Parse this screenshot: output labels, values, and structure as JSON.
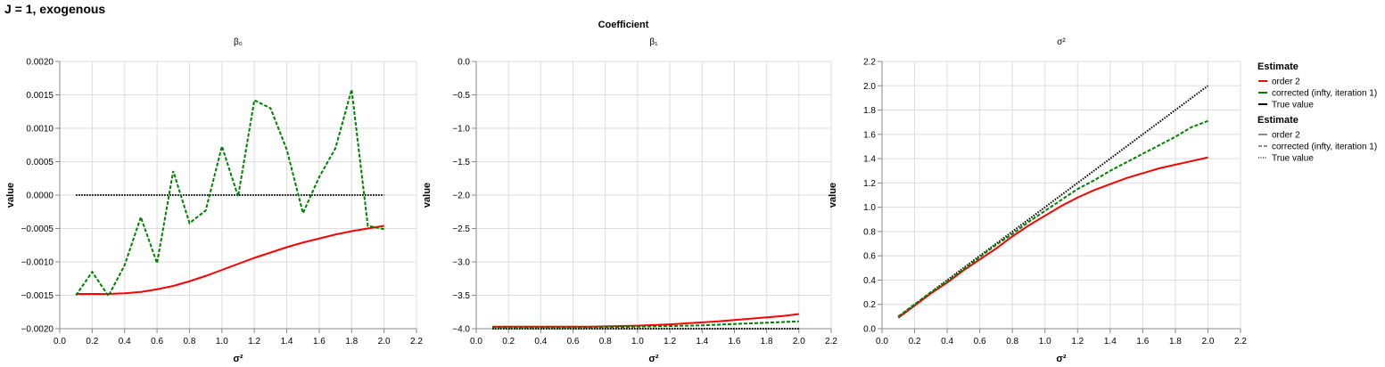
{
  "figure": {
    "title": "J = 1, exogenous",
    "column_title": "Coefficient"
  },
  "legend": {
    "color_title": "Estimate",
    "dash_title": "Estimate",
    "entries": [
      {
        "label": "order 2",
        "color": "#ff0000"
      },
      {
        "label": "corrected (infty, iteration 1)",
        "color": "#008000"
      },
      {
        "label": "True value",
        "color": "#000000"
      }
    ],
    "dash_entries": [
      {
        "label": "order 2",
        "dash": "solid"
      },
      {
        "label": "corrected (infty, iteration 1)",
        "dash": "dashed"
      },
      {
        "label": "True value",
        "dash": "dotted"
      }
    ]
  },
  "chart_data": [
    {
      "type": "line",
      "title": "β₀",
      "xlabel": "σ²",
      "ylabel": "value",
      "xlim": [
        0.0,
        2.2
      ],
      "ylim": [
        -0.002,
        0.002
      ],
      "xticks": [
        "0.0",
        "0.2",
        "0.4",
        "0.6",
        "0.8",
        "1.0",
        "1.2",
        "1.4",
        "1.6",
        "1.8",
        "2.0",
        "2.2"
      ],
      "yticks": [
        "−0.0020",
        "−0.0015",
        "−0.0010",
        "−0.0005",
        "0.0000",
        "0.0005",
        "0.0010",
        "0.0015",
        "0.0020"
      ],
      "x": [
        0.1,
        0.2,
        0.3,
        0.4,
        0.5,
        0.6,
        0.7,
        0.8,
        0.9,
        1.0,
        1.1,
        1.2,
        1.3,
        1.4,
        1.5,
        1.6,
        1.7,
        1.8,
        1.9,
        2.0
      ],
      "series": [
        {
          "name": "order 2",
          "values": [
            -0.00148,
            -0.00148,
            -0.00148,
            -0.00147,
            -0.00145,
            -0.00141,
            -0.00136,
            -0.00129,
            -0.00121,
            -0.00112,
            -0.00103,
            -0.00094,
            -0.00086,
            -0.00078,
            -0.00071,
            -0.00065,
            -0.00059,
            -0.00054,
            -0.0005,
            -0.00046
          ]
        },
        {
          "name": "corrected (infty, iteration 1)",
          "values": [
            -0.0015,
            -0.00115,
            -0.00151,
            -0.00105,
            -0.00033,
            -0.00102,
            0.00036,
            -0.00042,
            -0.00023,
            0.00073,
            -2e-05,
            0.00142,
            0.0013,
            0.00068,
            -0.00027,
            0.00027,
            0.0007,
            0.00158,
            -0.00046,
            -0.00051
          ]
        },
        {
          "name": "True value",
          "values": [
            0,
            0,
            0,
            0,
            0,
            0,
            0,
            0,
            0,
            0,
            0,
            0,
            0,
            0,
            0,
            0,
            0,
            0,
            0,
            0
          ]
        }
      ]
    },
    {
      "type": "line",
      "title": "β₁",
      "xlabel": "σ²",
      "ylabel": "value",
      "xlim": [
        0.0,
        2.2
      ],
      "ylim": [
        -4.0,
        0.0
      ],
      "xticks": [
        "0.0",
        "0.2",
        "0.4",
        "0.6",
        "0.8",
        "1.0",
        "1.2",
        "1.4",
        "1.6",
        "1.8",
        "2.0",
        "2.2"
      ],
      "yticks": [
        "−4.0",
        "−3.5",
        "−3.0",
        "−2.5",
        "−2.0",
        "−1.5",
        "−1.0",
        "−0.5",
        "0.0"
      ],
      "x": [
        0.1,
        0.2,
        0.3,
        0.4,
        0.5,
        0.6,
        0.7,
        0.8,
        0.9,
        1.0,
        1.1,
        1.2,
        1.3,
        1.4,
        1.5,
        1.6,
        1.7,
        1.8,
        1.9,
        2.0
      ],
      "series": [
        {
          "name": "order 2",
          "values": [
            -3.97,
            -3.97,
            -3.97,
            -3.97,
            -3.97,
            -3.97,
            -3.97,
            -3.965,
            -3.96,
            -3.955,
            -3.945,
            -3.935,
            -3.92,
            -3.905,
            -3.89,
            -3.87,
            -3.85,
            -3.83,
            -3.81,
            -3.78
          ]
        },
        {
          "name": "corrected (infty, iteration 1)",
          "values": [
            -3.98,
            -3.98,
            -3.98,
            -3.98,
            -3.98,
            -3.98,
            -3.98,
            -3.975,
            -3.975,
            -3.97,
            -3.965,
            -3.96,
            -3.955,
            -3.95,
            -3.94,
            -3.93,
            -3.92,
            -3.91,
            -3.9,
            -3.89
          ]
        },
        {
          "name": "True value",
          "values": [
            -4,
            -4,
            -4,
            -4,
            -4,
            -4,
            -4,
            -4,
            -4,
            -4,
            -4,
            -4,
            -4,
            -4,
            -4,
            -4,
            -4,
            -4,
            -4,
            -4
          ]
        }
      ]
    },
    {
      "type": "line",
      "title": "σ²",
      "xlabel": "σ²",
      "ylabel": "value",
      "xlim": [
        0.0,
        2.2
      ],
      "ylim": [
        0.0,
        2.2
      ],
      "xticks": [
        "0.0",
        "0.2",
        "0.4",
        "0.6",
        "0.8",
        "1.0",
        "1.2",
        "1.4",
        "1.6",
        "1.8",
        "2.0",
        "2.2"
      ],
      "yticks": [
        "0.0",
        "0.2",
        "0.4",
        "0.6",
        "0.8",
        "1.0",
        "1.2",
        "1.4",
        "1.6",
        "1.8",
        "2.0",
        "2.2"
      ],
      "x": [
        0.1,
        0.2,
        0.3,
        0.4,
        0.5,
        0.6,
        0.7,
        0.8,
        0.9,
        1.0,
        1.1,
        1.2,
        1.3,
        1.4,
        1.5,
        1.6,
        1.7,
        1.8,
        1.9,
        2.0
      ],
      "series": [
        {
          "name": "order 2",
          "values": [
            0.09,
            0.19,
            0.29,
            0.38,
            0.48,
            0.57,
            0.66,
            0.76,
            0.85,
            0.93,
            1.01,
            1.08,
            1.14,
            1.19,
            1.24,
            1.28,
            1.32,
            1.35,
            1.38,
            1.41
          ]
        },
        {
          "name": "corrected (infty, iteration 1)",
          "values": [
            0.1,
            0.2,
            0.3,
            0.39,
            0.49,
            0.59,
            0.69,
            0.78,
            0.88,
            0.97,
            1.06,
            1.15,
            1.22,
            1.3,
            1.37,
            1.44,
            1.51,
            1.58,
            1.66,
            1.71
          ]
        },
        {
          "name": "True value",
          "values": [
            0.1,
            0.2,
            0.3,
            0.4,
            0.5,
            0.6,
            0.7,
            0.8,
            0.9,
            1.0,
            1.1,
            1.2,
            1.3,
            1.4,
            1.5,
            1.6,
            1.7,
            1.8,
            1.9,
            2.0
          ]
        }
      ]
    }
  ]
}
